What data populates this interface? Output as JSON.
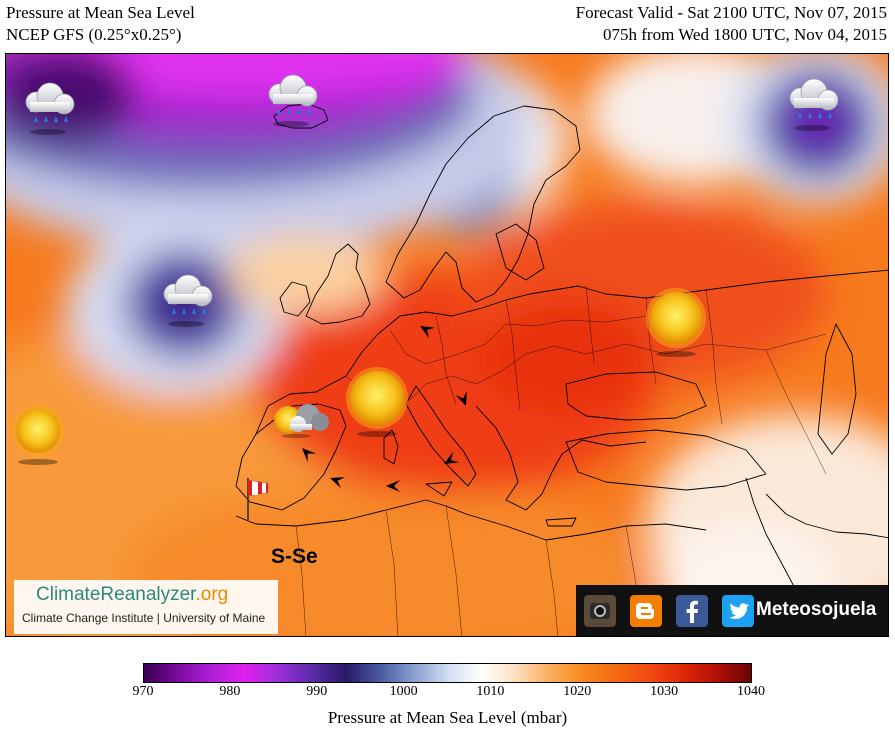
{
  "header": {
    "title": "Pressure at Mean Sea Level",
    "model": "NCEP GFS (0.25°x0.25°)",
    "valid": "Forecast Valid - Sat 2100 UTC, Nov 07, 2015",
    "run": "075h from Wed 1800 UTC, Nov 04, 2015"
  },
  "map": {
    "wind_label": "S-Se",
    "icons": [
      "rain-cloud-icon",
      "sun-icon",
      "sun-cloud-icon",
      "wind-sock-icon",
      "wind-arrow-icon"
    ]
  },
  "branding": {
    "site_name": "ClimateReanalyzer",
    "site_tld": ".org",
    "affiliation": "Climate Change Institute | University of Maine",
    "social_handle": "Meteosojuela",
    "social_icons": [
      "instagram-icon",
      "blogger-icon",
      "facebook-icon",
      "twitter-icon"
    ]
  },
  "colorbar": {
    "title": "Pressure at Mean Sea Level (mbar)",
    "ticks": [
      "970",
      "980",
      "990",
      "1000",
      "1010",
      "1020",
      "1030",
      "1040"
    ],
    "range": [
      970,
      1040
    ],
    "colors": [
      "#3a0050",
      "#7a0a9e",
      "#b020d8",
      "#e020f0",
      "#9a30d8",
      "#5a2aa8",
      "#2a1a6a",
      "#4a5aa0",
      "#8a9ed0",
      "#d0dcf0",
      "#ffffff",
      "#fde0c0",
      "#fbb060",
      "#f88a20",
      "#f46a10",
      "#f04a10",
      "#e02808",
      "#b00e06",
      "#6a0504"
    ]
  }
}
